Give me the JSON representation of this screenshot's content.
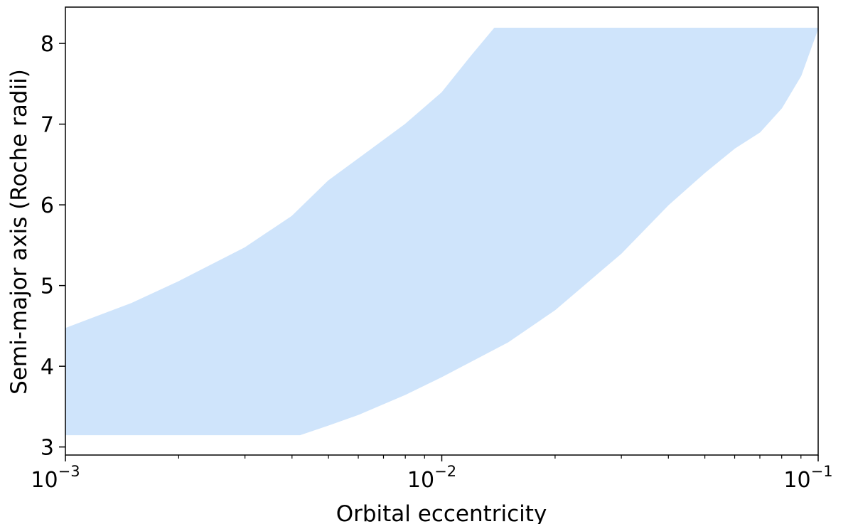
{
  "chart_data": {
    "type": "area",
    "xlabel": "Orbital eccentricity",
    "ylabel": "Semi-major axis (Roche radii)",
    "xscale": "log",
    "xlim": [
      0.001,
      0.1
    ],
    "ylim": [
      2.9,
      8.45
    ],
    "grid": false,
    "x_ticks": [
      {
        "value": 0.001,
        "base": "10",
        "exp": "−3"
      },
      {
        "value": 0.01,
        "base": "10",
        "exp": "−2"
      },
      {
        "value": 0.1,
        "base": "10",
        "exp": "−1"
      }
    ],
    "y_ticks": [
      "3",
      "4",
      "5",
      "6",
      "7",
      "8"
    ],
    "fill_color": "#cfe4fb",
    "series": [
      {
        "upper": [
          {
            "x": 0.001,
            "y": 4.47
          },
          {
            "x": 0.0015,
            "y": 4.78
          },
          {
            "x": 0.002,
            "y": 5.05
          },
          {
            "x": 0.003,
            "y": 5.47
          },
          {
            "x": 0.004,
            "y": 5.86
          },
          {
            "x": 0.005,
            "y": 6.3
          },
          {
            "x": 0.006,
            "y": 6.57
          },
          {
            "x": 0.008,
            "y": 7.0
          },
          {
            "x": 0.01,
            "y": 7.39
          },
          {
            "x": 0.012,
            "y": 7.85
          },
          {
            "x": 0.0138,
            "y": 8.19
          },
          {
            "x": 0.1,
            "y": 8.19
          }
        ],
        "lower": [
          {
            "x": 0.001,
            "y": 3.15
          },
          {
            "x": 0.0042,
            "y": 3.15
          },
          {
            "x": 0.005,
            "y": 3.27
          },
          {
            "x": 0.006,
            "y": 3.4
          },
          {
            "x": 0.008,
            "y": 3.65
          },
          {
            "x": 0.01,
            "y": 3.87
          },
          {
            "x": 0.015,
            "y": 4.3
          },
          {
            "x": 0.02,
            "y": 4.7
          },
          {
            "x": 0.03,
            "y": 5.4
          },
          {
            "x": 0.04,
            "y": 6.0
          },
          {
            "x": 0.05,
            "y": 6.4
          },
          {
            "x": 0.06,
            "y": 6.7
          },
          {
            "x": 0.07,
            "y": 6.9
          },
          {
            "x": 0.08,
            "y": 7.2
          },
          {
            "x": 0.09,
            "y": 7.6
          },
          {
            "x": 0.1,
            "y": 8.19
          }
        ]
      }
    ]
  }
}
